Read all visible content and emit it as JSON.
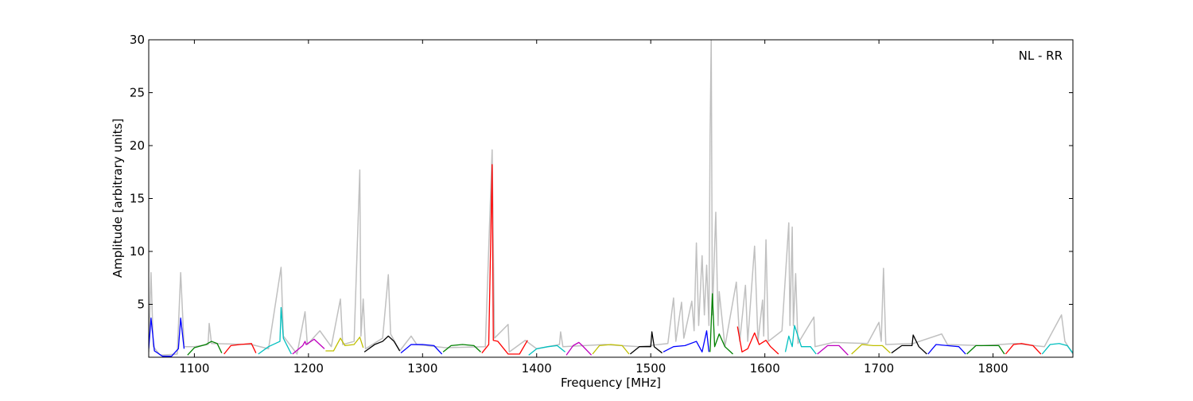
{
  "chart_data": {
    "type": "line",
    "annotation": "NL - RR",
    "xlabel": "Frequency [MHz]",
    "ylabel": "Amplitude [arbitrary units]",
    "xlim": [
      1060,
      1870
    ],
    "ylim": [
      0,
      30
    ],
    "xticks": [
      1100,
      1200,
      1300,
      1400,
      1500,
      1600,
      1700,
      1800
    ],
    "yticks": [
      5,
      10,
      15,
      20,
      25,
      30
    ],
    "series": [
      {
        "color": "#c0c0c0",
        "x": [
          1060,
          1062,
          1064,
          1070,
          1085,
          1088,
          1091,
          1100,
          1112,
          1113,
          1115,
          1150,
          1165,
          1176,
          1178,
          1190,
          1197,
          1199,
          1210,
          1220,
          1228,
          1230,
          1240,
          1245,
          1246,
          1248,
          1250,
          1265,
          1270,
          1272,
          1280,
          1290,
          1295,
          1320,
          1355,
          1361,
          1363,
          1375,
          1376,
          1390,
          1400,
          1420,
          1421,
          1423,
          1460,
          1490,
          1515,
          1520,
          1522,
          1527,
          1529,
          1536,
          1538,
          1540,
          1542,
          1545,
          1547,
          1549,
          1551,
          1552,
          1553,
          1554,
          1557,
          1559,
          1560,
          1565,
          1575,
          1578,
          1583,
          1585,
          1591,
          1594,
          1598,
          1599,
          1601,
          1603,
          1615,
          1621,
          1622,
          1624,
          1625,
          1627,
          1629,
          1643,
          1644,
          1660,
          1690,
          1700,
          1702,
          1704,
          1706,
          1730,
          1755,
          1760,
          1790,
          1820,
          1845,
          1858,
          1860,
          1863,
          1870
        ],
        "values": [
          0.5,
          8,
          1,
          0.2,
          0.3,
          8,
          1,
          1,
          1.2,
          3.2,
          1.3,
          1.2,
          0.8,
          8.5,
          2,
          0.3,
          4.3,
          1.2,
          2.5,
          1,
          5.5,
          1.2,
          1.5,
          17.7,
          2,
          5.5,
          0.8,
          1.8,
          7.8,
          2.2,
          0.6,
          2,
          1.2,
          0.9,
          1,
          19.6,
          1.8,
          3.1,
          0.5,
          1.6,
          0.8,
          1.2,
          2.4,
          1,
          1.2,
          1,
          1.3,
          5.6,
          1.5,
          5.2,
          1.8,
          5.3,
          2.5,
          10.8,
          3,
          9.6,
          4,
          8.7,
          3,
          20.9,
          30,
          4,
          13.7,
          3,
          6.2,
          1,
          7.1,
          1.5,
          6.8,
          1.5,
          10.5,
          1.5,
          5.4,
          2,
          11.1,
          1.5,
          2.5,
          12.7,
          3,
          12.3,
          3,
          7.9,
          1.3,
          3.8,
          1,
          1.4,
          1.3,
          3.3,
          1.5,
          8.4,
          1.2,
          1.3,
          2.2,
          1.2,
          1.1,
          1.3,
          1,
          3.6,
          4,
          1.5,
          0.3
        ]
      },
      {
        "color": "#0000ff",
        "x": [
          1060,
          1062,
          1065,
          1072,
          1080,
          1086,
          1088,
          1091
        ],
        "values": [
          0.8,
          3.7,
          0.6,
          0.1,
          0.1,
          0.8,
          3.7,
          0.8
        ]
      },
      {
        "color": "#008000",
        "x": [
          1094,
          1100,
          1110,
          1115,
          1120,
          1124
        ],
        "values": [
          0.2,
          0.9,
          1.2,
          1.5,
          1.3,
          0.4
        ]
      },
      {
        "color": "#ff0000",
        "x": [
          1126,
          1132,
          1140,
          1150,
          1154
        ],
        "values": [
          0.3,
          1.1,
          1.2,
          1.3,
          0.4
        ]
      },
      {
        "color": "#00bfbf",
        "x": [
          1156,
          1165,
          1175,
          1176,
          1178,
          1185
        ],
        "values": [
          0.3,
          1,
          1.5,
          4.7,
          1.8,
          0.3
        ]
      },
      {
        "color": "#bf00bf",
        "x": [
          1186,
          1195,
          1197,
          1198,
          1205,
          1214
        ],
        "values": [
          0.3,
          1.1,
          1.5,
          1.2,
          1.7,
          0.8
        ]
      },
      {
        "color": "#bfbf00",
        "x": [
          1215,
          1222,
          1228,
          1232,
          1240,
          1245,
          1248
        ],
        "values": [
          0.6,
          0.6,
          1.8,
          1.1,
          1.2,
          1.9,
          0.9
        ]
      },
      {
        "color": "#000000",
        "x": [
          1249,
          1258,
          1265,
          1270,
          1275,
          1280
        ],
        "values": [
          0.5,
          1.2,
          1.5,
          2.0,
          1.5,
          0.6
        ]
      },
      {
        "color": "#0000ff",
        "x": [
          1281,
          1290,
          1300,
          1310,
          1317
        ],
        "values": [
          0.4,
          1.2,
          1.2,
          1.1,
          0.3
        ]
      },
      {
        "color": "#008000",
        "x": [
          1318,
          1325,
          1335,
          1345,
          1351
        ],
        "values": [
          0.5,
          1.1,
          1.2,
          1.1,
          0.5
        ]
      },
      {
        "color": "#ff0000",
        "x": [
          1352,
          1358,
          1361,
          1362,
          1366,
          1375,
          1385,
          1392
        ],
        "values": [
          0.4,
          1.2,
          18.2,
          1.6,
          1.5,
          0.3,
          0.3,
          1.6
        ]
      },
      {
        "color": "#00bfbf",
        "x": [
          1393,
          1400,
          1410,
          1418,
          1425
        ],
        "values": [
          0.2,
          0.8,
          1,
          1.1,
          0.5
        ]
      },
      {
        "color": "#bf00bf",
        "x": [
          1426,
          1432,
          1437,
          1440,
          1448
        ],
        "values": [
          0.2,
          1.1,
          1.4,
          1.1,
          0.2
        ]
      },
      {
        "color": "#bfbf00",
        "x": [
          1449,
          1455,
          1465,
          1475,
          1481
        ],
        "values": [
          0.3,
          1.1,
          1.2,
          1.1,
          0.3
        ]
      },
      {
        "color": "#000000",
        "x": [
          1482,
          1490,
          1500,
          1501,
          1503,
          1510
        ],
        "values": [
          0.3,
          1,
          1,
          2.4,
          1,
          0.4
        ]
      },
      {
        "color": "#0000ff",
        "x": [
          1511,
          1520,
          1530,
          1540,
          1545,
          1549,
          1551
        ],
        "values": [
          0.5,
          1.0,
          1.1,
          1.5,
          0.5,
          2.5,
          0.5
        ]
      },
      {
        "color": "#008000",
        "x": [
          1552,
          1554,
          1556,
          1560,
          1565,
          1572
        ],
        "values": [
          0.5,
          6,
          1,
          2.2,
          1,
          0.3
        ]
      },
      {
        "color": "#ff0000",
        "x": [
          1576,
          1580,
          1585,
          1591,
          1595,
          1601,
          1605,
          1612
        ],
        "values": [
          2.9,
          0.5,
          0.8,
          2.3,
          1.2,
          1.6,
          1,
          0.3
        ]
      },
      {
        "color": "#00bfbf",
        "x": [
          1618,
          1621,
          1624,
          1626,
          1632,
          1640,
          1645
        ],
        "values": [
          0.5,
          2,
          1,
          3.0,
          1,
          1,
          0.3
        ]
      },
      {
        "color": "#bf00bf",
        "x": [
          1646,
          1655,
          1665,
          1673
        ],
        "values": [
          0.3,
          1.1,
          1.1,
          0.2
        ]
      },
      {
        "color": "#bfbf00",
        "x": [
          1676,
          1685,
          1695,
          1703,
          1710
        ],
        "values": [
          0.3,
          1.2,
          1.1,
          1.1,
          0.4
        ]
      },
      {
        "color": "#000000",
        "x": [
          1711,
          1720,
          1729,
          1730,
          1735,
          1742
        ],
        "values": [
          0.4,
          1.1,
          1.1,
          2.1,
          1,
          0.3
        ]
      },
      {
        "color": "#0000ff",
        "x": [
          1743,
          1750,
          1760,
          1770,
          1776
        ],
        "values": [
          0.3,
          1.2,
          1.1,
          1,
          0.3
        ]
      },
      {
        "color": "#008000",
        "x": [
          1777,
          1785,
          1795,
          1805,
          1810
        ],
        "values": [
          0.3,
          1.1,
          1.1,
          1.1,
          0.3
        ]
      },
      {
        "color": "#ff0000",
        "x": [
          1811,
          1818,
          1825,
          1835,
          1842
        ],
        "values": [
          0.3,
          1.2,
          1.3,
          1.1,
          0.3
        ]
      },
      {
        "color": "#00bfbf",
        "x": [
          1843,
          1850,
          1858,
          1865,
          1870
        ],
        "values": [
          0.3,
          1.2,
          1.3,
          1.1,
          0.4
        ]
      }
    ]
  }
}
